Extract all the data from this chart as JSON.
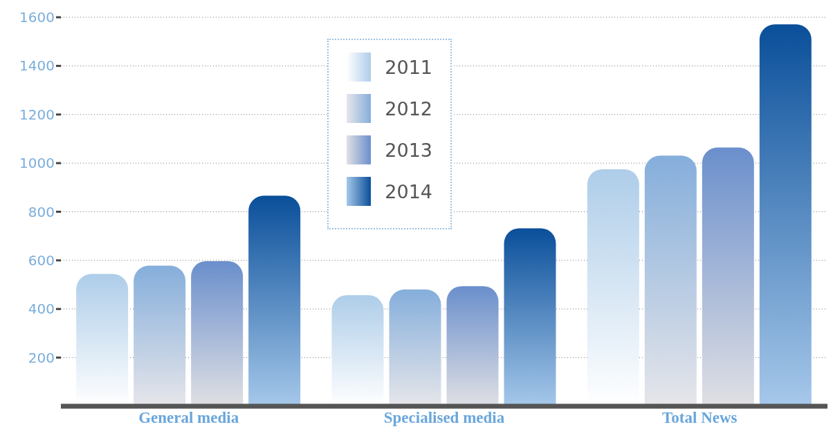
{
  "chart_data": {
    "type": "bar",
    "categories": [
      "General media",
      "Specialised media",
      "Total News"
    ],
    "series": [
      {
        "name": "2011",
        "color": "#aecde9",
        "values": [
          544,
          457,
          975
        ]
      },
      {
        "name": "2012",
        "color": "#85aedb",
        "values": [
          578,
          480,
          1031
        ]
      },
      {
        "name": "2013",
        "color": "#6a8fcc",
        "values": [
          597,
          494,
          1064
        ]
      },
      {
        "name": "2014",
        "color": "#0a4f9a",
        "values": [
          866,
          732,
          1571
        ]
      }
    ],
    "ylim": [
      0,
      1600
    ],
    "yticks": [
      200,
      400,
      600,
      800,
      1000,
      1200,
      1400,
      1600
    ],
    "grid": "y",
    "legend": "top"
  }
}
